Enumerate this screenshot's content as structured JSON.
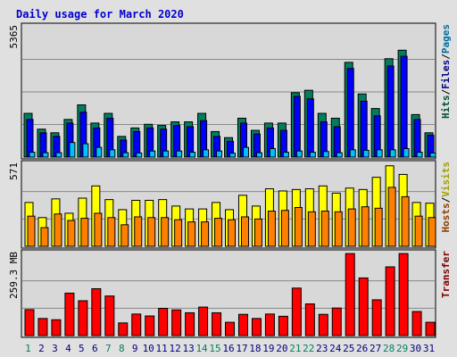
{
  "chart_data": [
    {
      "type": "bar",
      "title": "Daily usage for March 2020",
      "categories": [
        "1",
        "2",
        "3",
        "4",
        "5",
        "6",
        "7",
        "8",
        "9",
        "10",
        "11",
        "12",
        "13",
        "14",
        "15",
        "16",
        "17",
        "18",
        "19",
        "20",
        "21",
        "22",
        "23",
        "24",
        "25",
        "26",
        "27",
        "28",
        "29",
        "30",
        "31"
      ],
      "weekend_days": [
        "1",
        "7",
        "8",
        "14",
        "15",
        "21",
        "22",
        "28",
        "29"
      ],
      "ymax_label": "5365",
      "ylim": [
        0,
        5365
      ],
      "grid": true,
      "right_label": {
        "parts": [
          "Hits",
          "Files",
          "Pages"
        ],
        "separator": "/"
      },
      "series": [
        {
          "name": "Hits",
          "color": "#007f5f",
          "values": [
            1800,
            1150,
            1000,
            1550,
            2150,
            1400,
            1800,
            850,
            1200,
            1350,
            1300,
            1450,
            1450,
            1800,
            1050,
            800,
            1600,
            1100,
            1400,
            1400,
            2650,
            2750,
            1800,
            1600,
            3900,
            2600,
            2000,
            4050,
            4400,
            1750,
            1000
          ]
        },
        {
          "name": "Files",
          "color": "#0000ff",
          "values": [
            1550,
            1000,
            850,
            1400,
            1850,
            1200,
            1600,
            700,
            1050,
            1200,
            1150,
            1300,
            1250,
            1500,
            850,
            650,
            1400,
            950,
            1200,
            1100,
            2500,
            2400,
            1450,
            1250,
            3650,
            2300,
            1700,
            3750,
            4150,
            1550,
            900
          ]
        },
        {
          "name": "Pages",
          "color": "#00c0ff",
          "values": [
            200,
            180,
            180,
            600,
            550,
            400,
            300,
            180,
            170,
            250,
            250,
            250,
            200,
            300,
            250,
            160,
            400,
            180,
            350,
            200,
            250,
            200,
            230,
            180,
            300,
            280,
            300,
            300,
            350,
            200,
            170
          ]
        }
      ]
    },
    {
      "type": "bar",
      "ymax_label": "571",
      "ylim": [
        0,
        571
      ],
      "grid": true,
      "right_label": {
        "parts": [
          "Hosts",
          "Visits"
        ],
        "separator": "/"
      },
      "series": [
        {
          "name": "Visits",
          "color": "#ffff00",
          "values": [
            305,
            200,
            330,
            230,
            335,
            420,
            325,
            255,
            320,
            320,
            325,
            280,
            260,
            260,
            305,
            255,
            355,
            280,
            400,
            385,
            395,
            400,
            420,
            370,
            405,
            395,
            480,
            560,
            500,
            305,
            300
          ]
        },
        {
          "name": "Hosts",
          "color": "#ff8000",
          "values": [
            210,
            130,
            225,
            180,
            195,
            230,
            200,
            150,
            205,
            200,
            200,
            185,
            170,
            170,
            195,
            185,
            205,
            190,
            245,
            250,
            270,
            240,
            245,
            240,
            260,
            275,
            265,
            410,
            345,
            210,
            200
          ]
        }
      ]
    },
    {
      "type": "bar",
      "ymax_label": "259.3 MB",
      "ylim": [
        0,
        259.3
      ],
      "grid": true,
      "right_label": {
        "parts": [
          "Transfer"
        ],
        "separator": ""
      },
      "series": [
        {
          "name": "Transfer",
          "color": "#ff0000",
          "values": [
            82,
            54,
            50,
            134,
            110,
            148,
            125,
            40,
            68,
            62,
            86,
            81,
            72,
            90,
            72,
            42,
            67,
            54,
            68,
            61,
            150,
            100,
            67,
            87,
            259,
            182,
            113,
            217,
            259,
            76,
            42
          ]
        }
      ]
    }
  ]
}
